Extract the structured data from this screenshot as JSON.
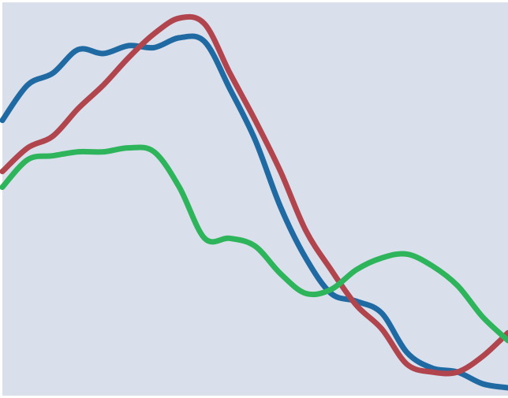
{
  "chart_data": {
    "type": "line",
    "title": "",
    "xlabel": "",
    "ylabel": "",
    "grid": false,
    "legend": "none",
    "xlim": [
      0,
      100
    ],
    "ylim": [
      0,
      100
    ],
    "background_color": "#d9e0ec",
    "series": [
      {
        "color": "#1f6aa3",
        "x": [
          0,
          5,
          10,
          15,
          20,
          25,
          30,
          35,
          40,
          45,
          50,
          55,
          60,
          65,
          70,
          75,
          80,
          85,
          90,
          95,
          100
        ],
        "y": [
          70,
          79,
          82,
          88,
          87,
          89,
          88.5,
          91,
          90,
          78,
          65,
          48,
          35,
          26,
          24,
          21,
          11,
          7,
          6,
          3,
          2
        ]
      },
      {
        "color": "#b1454d",
        "x": [
          0,
          5,
          10,
          15,
          20,
          25,
          30,
          35,
          40,
          45,
          50,
          55,
          60,
          65,
          70,
          75,
          80,
          85,
          90,
          95,
          100
        ],
        "y": [
          57,
          63,
          66,
          73,
          79,
          86,
          92,
          96,
          94.5,
          82,
          70,
          57,
          42,
          32,
          23,
          17,
          8,
          6,
          6,
          10,
          16
        ]
      },
      {
        "color": "#2eb45a",
        "x": [
          0,
          5,
          10,
          15,
          20,
          25,
          30,
          35,
          40,
          45,
          50,
          55,
          60,
          65,
          70,
          75,
          80,
          85,
          90,
          95,
          100
        ],
        "y": [
          53,
          60,
          61,
          62,
          62,
          63,
          62,
          53,
          40,
          40,
          38,
          31,
          26,
          27,
          32,
          35,
          36,
          33,
          28,
          20,
          14
        ]
      }
    ]
  }
}
